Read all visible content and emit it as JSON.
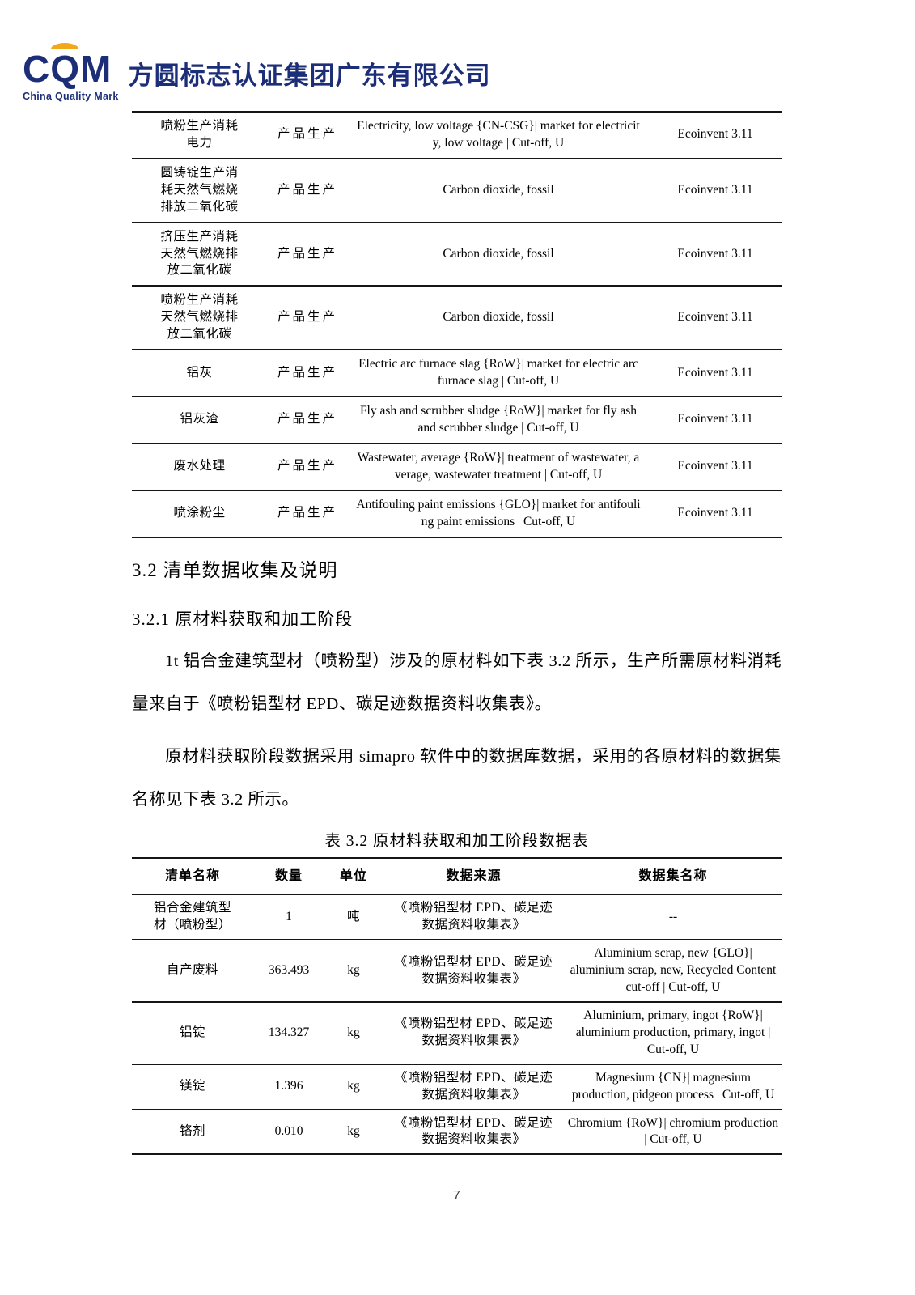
{
  "header": {
    "logo_acronym": "CQM",
    "logo_subtitle": "China Quality Mark",
    "company_name": "方圆标志认证集团广东有限公司",
    "colors": {
      "logo_navy": "#1c2e78",
      "logo_orange": "#f2a818"
    }
  },
  "continued_table": {
    "rows": [
      {
        "item": "喷粉生产消耗电力",
        "stage": "产品生产",
        "dataset": "Electricity, low voltage {CN-CSG}| market for electricity, low voltage | Cut-off, U",
        "database": "Ecoinvent 3.11"
      },
      {
        "item": "圆铸锭生产消耗天然气燃烧排放二氧化碳",
        "stage": "产品生产",
        "dataset": "Carbon dioxide, fossil",
        "database": "Ecoinvent 3.11"
      },
      {
        "item": "挤压生产消耗天然气燃烧排放二氧化碳",
        "stage": "产品生产",
        "dataset": "Carbon dioxide, fossil",
        "database": "Ecoinvent 3.11"
      },
      {
        "item": "喷粉生产消耗天然气燃烧排放二氧化碳",
        "stage": "产品生产",
        "dataset": "Carbon dioxide, fossil",
        "database": "Ecoinvent 3.11"
      },
      {
        "item": "铝灰",
        "stage": "产品生产",
        "dataset": "Electric arc furnace slag {RoW}| market for electric arc furnace slag | Cut-off, U",
        "database": "Ecoinvent 3.11"
      },
      {
        "item": "铝灰渣",
        "stage": "产品生产",
        "dataset": "Fly ash and scrubber sludge {RoW}| market for fly ash and scrubber sludge | Cut-off, U",
        "database": "Ecoinvent 3.11"
      },
      {
        "item": "废水处理",
        "stage": "产品生产",
        "dataset": "Wastewater, average {RoW}| treatment of wastewater, average, wastewater treatment | Cut-off, U",
        "database": "Ecoinvent 3.11"
      },
      {
        "item": "喷涂粉尘",
        "stage": "产品生产",
        "dataset": "Antifouling paint emissions {GLO}| market for antifouling paint emissions | Cut-off, U",
        "database": "Ecoinvent 3.11"
      }
    ]
  },
  "section": {
    "heading_32": "3.2 清单数据收集及说明",
    "heading_321": "3.2.1 原材料获取和加工阶段",
    "para1": "1t 铝合金建筑型材（喷粉型）涉及的原材料如下表 3.2 所示，生产所需原材料消耗量来自于《喷粉铝型材 EPD、碳足迹数据资料收集表》。",
    "para2": "原材料获取阶段数据采用 simapro 软件中的数据库数据，采用的各原材料的数据集名称见下表 3.2 所示。"
  },
  "table32": {
    "caption": "表 3.2 原材料获取和加工阶段数据表",
    "columns": [
      "清单名称",
      "数量",
      "单位",
      "数据来源",
      "数据集名称"
    ],
    "rows": [
      {
        "name": "铝合金建筑型材（喷粉型）",
        "qty": "1",
        "unit": "吨",
        "source": "《喷粉铝型材 EPD、碳足迹数据资料收集表》",
        "dataset": "--"
      },
      {
        "name": "自产废料",
        "qty": "363.493",
        "unit": "kg",
        "source": "《喷粉铝型材 EPD、碳足迹数据资料收集表》",
        "dataset": "Aluminium scrap, new {GLO}| aluminium scrap, new, Recycled Content cut-off | Cut-off, U"
      },
      {
        "name": "铝锭",
        "qty": "134.327",
        "unit": "kg",
        "source": "《喷粉铝型材 EPD、碳足迹数据资料收集表》",
        "dataset": "Aluminium, primary, ingot {RoW}| aluminium production, primary, ingot | Cut-off, U"
      },
      {
        "name": "镁锭",
        "qty": "1.396",
        "unit": "kg",
        "source": "《喷粉铝型材 EPD、碳足迹数据资料收集表》",
        "dataset": "Magnesium {CN}| magnesium production, pidgeon process | Cut-off, U"
      },
      {
        "name": "铬剂",
        "qty": "0.010",
        "unit": "kg",
        "source": "《喷粉铝型材 EPD、碳足迹数据资料收集表》",
        "dataset": "Chromium {RoW}| chromium production | Cut-off, U"
      }
    ]
  },
  "footer": {
    "page_number": "7"
  }
}
